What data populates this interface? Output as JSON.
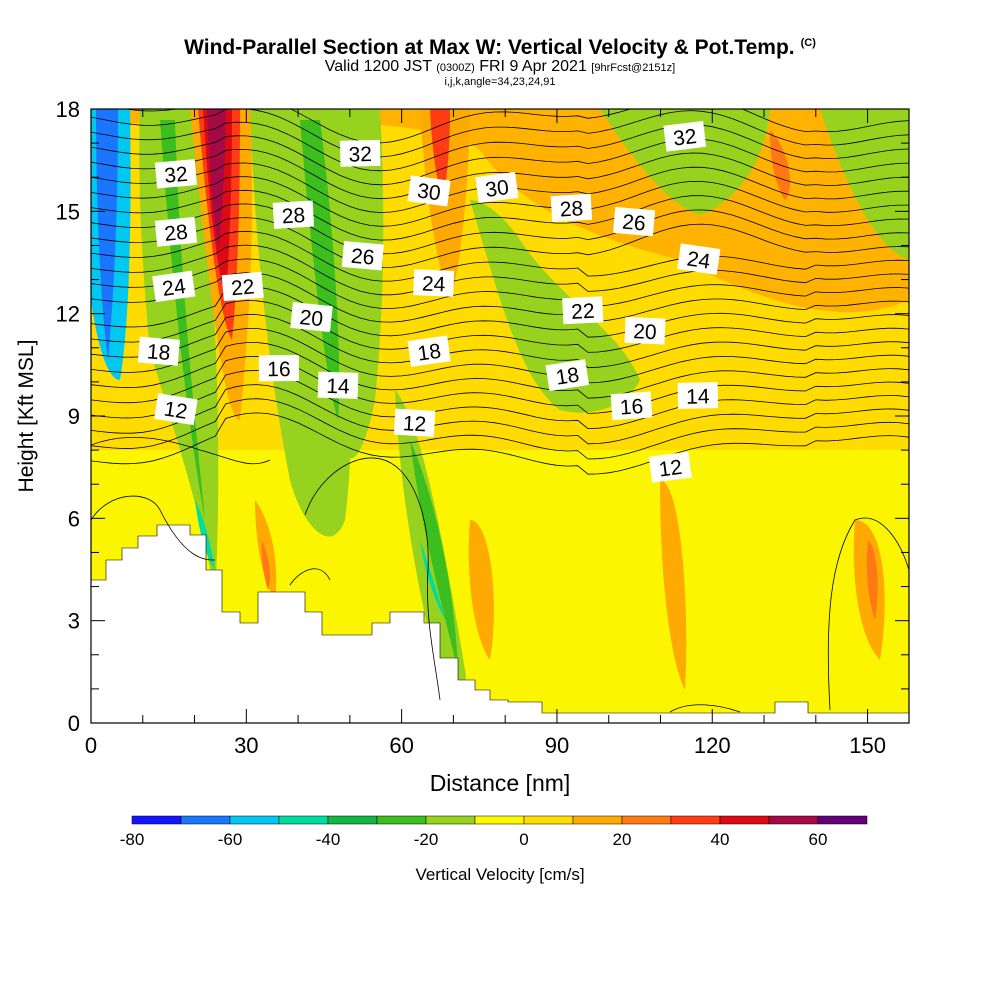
{
  "header": {
    "title": "Wind-Parallel Section at Max W: Vertical Velocity & Pot.Temp.",
    "copyright": "(C)",
    "valid_prefix": "Valid 1200 JST",
    "valid_utc": "(0300Z)",
    "valid_date": "FRI 9 Apr 2021",
    "forecast": "[9hrFcst@2151z]",
    "indices": "i,j,k,angle=34,23,24,91"
  },
  "chart_data": {
    "type": "heatmap",
    "xlabel": "Distance [nm]",
    "ylabel": "Height [Kft MSL]",
    "xlim": [
      0,
      158
    ],
    "ylim": [
      0,
      18
    ],
    "x_ticks": [
      0,
      30,
      60,
      90,
      120,
      150
    ],
    "y_ticks": [
      0,
      3,
      6,
      9,
      12,
      15,
      18
    ],
    "colorbar": {
      "label": "Vertical Velocity [cm/s]",
      "ticks": [
        -80,
        -60,
        -40,
        -20,
        0,
        20,
        40,
        60
      ],
      "bins": [
        -80,
        -70,
        -60,
        -50,
        -40,
        -30,
        -20,
        -10,
        0,
        10,
        20,
        30,
        40,
        50,
        60,
        70
      ],
      "colors": [
        "#1414ff",
        "#1a75ff",
        "#00c8f0",
        "#00dca0",
        "#14b446",
        "#3cbe1e",
        "#96d21e",
        "#fafa00",
        "#ffdc00",
        "#ffaa00",
        "#ff7814",
        "#ff3c14",
        "#dc0a14",
        "#a50a46",
        "#640078"
      ]
    },
    "contour_labels": [
      {
        "x": 16.4,
        "y": 16.1,
        "text": "32"
      },
      {
        "x": 52,
        "y": 16.7,
        "text": "32"
      },
      {
        "x": 114.7,
        "y": 17.2,
        "text": "32"
      },
      {
        "x": 65.3,
        "y": 15.6,
        "text": "30"
      },
      {
        "x": 78.4,
        "y": 15.7,
        "text": "30"
      },
      {
        "x": 16.4,
        "y": 14.4,
        "text": "28"
      },
      {
        "x": 39.1,
        "y": 14.9,
        "text": "28"
      },
      {
        "x": 92.8,
        "y": 15.1,
        "text": "28"
      },
      {
        "x": 52.5,
        "y": 13.7,
        "text": "26"
      },
      {
        "x": 104.9,
        "y": 14.7,
        "text": "26"
      },
      {
        "x": 16,
        "y": 12.8,
        "text": "24"
      },
      {
        "x": 66.2,
        "y": 12.9,
        "text": "24"
      },
      {
        "x": 117.4,
        "y": 13.6,
        "text": "24"
      },
      {
        "x": 29.3,
        "y": 12.8,
        "text": "22"
      },
      {
        "x": 95,
        "y": 12.1,
        "text": "22"
      },
      {
        "x": 42.6,
        "y": 11.9,
        "text": "20"
      },
      {
        "x": 107,
        "y": 11.5,
        "text": "20"
      },
      {
        "x": 13.1,
        "y": 10.9,
        "text": "18"
      },
      {
        "x": 65.3,
        "y": 10.9,
        "text": "18"
      },
      {
        "x": 92,
        "y": 10.2,
        "text": "18"
      },
      {
        "x": 36.3,
        "y": 10.4,
        "text": "16"
      },
      {
        "x": 104.4,
        "y": 9.3,
        "text": "16"
      },
      {
        "x": 47.7,
        "y": 9.9,
        "text": "14"
      },
      {
        "x": 117.2,
        "y": 9.6,
        "text": "14"
      },
      {
        "x": 16.4,
        "y": 9.2,
        "text": "12"
      },
      {
        "x": 62.5,
        "y": 8.8,
        "text": "12"
      },
      {
        "x": 111.9,
        "y": 7.5,
        "text": "12"
      }
    ],
    "grid": false,
    "legend": "colorbar-bottom"
  }
}
